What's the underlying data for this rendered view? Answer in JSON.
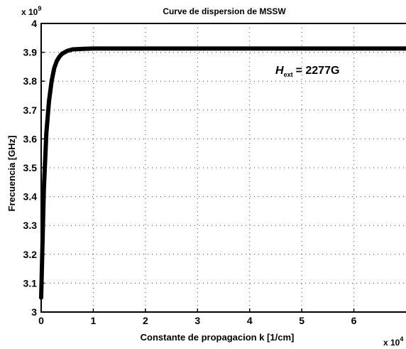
{
  "chart_data": {
    "type": "line",
    "title": "Curve de dispersion de MSSW",
    "xlabel": "Constante de propagacion k [1/cm]",
    "ylabel": "Frecuencia [GHz]",
    "x_multiplier_label": "x 10",
    "x_multiplier_exp": "4",
    "y_multiplier_label": "x 10",
    "y_multiplier_exp": "9",
    "annotation_symbol": "H",
    "annotation_subscript": "ext",
    "annotation_value": "= 2277G",
    "xlim": [
      0,
      7
    ],
    "ylim": [
      3.0,
      4.0
    ],
    "x_ticks": [
      "0",
      "1",
      "2",
      "3",
      "4",
      "5",
      "6"
    ],
    "x_tick_values": [
      0,
      1,
      2,
      3,
      4,
      5,
      6
    ],
    "y_ticks": [
      "3",
      "3.1",
      "3.2",
      "3.3",
      "3.4",
      "3.5",
      "3.6",
      "3.7",
      "3.8",
      "3.9",
      "4"
    ],
    "y_tick_values": [
      3.0,
      3.1,
      3.2,
      3.3,
      3.4,
      3.5,
      3.6,
      3.7,
      3.8,
      3.9,
      4.0
    ],
    "grid": true,
    "series": [
      {
        "color": "#000000",
        "x": [
          0,
          0.02,
          0.05,
          0.1,
          0.15,
          0.2,
          0.25,
          0.3,
          0.35,
          0.4,
          0.5,
          0.6,
          0.8,
          1.0,
          2.0,
          3.0,
          4.0,
          5.0,
          6.0,
          7.0
        ],
        "y": [
          3.05,
          3.2,
          3.42,
          3.62,
          3.73,
          3.8,
          3.845,
          3.87,
          3.885,
          3.895,
          3.905,
          3.91,
          3.912,
          3.913,
          3.913,
          3.913,
          3.913,
          3.913,
          3.913,
          3.913
        ]
      }
    ]
  }
}
